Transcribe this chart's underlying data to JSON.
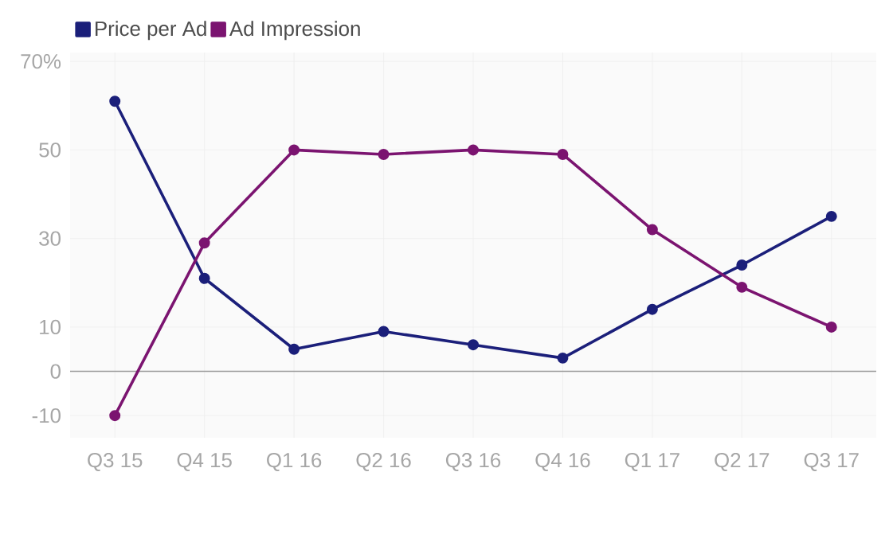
{
  "chart_data": {
    "type": "line",
    "categories": [
      "Q3 15",
      "Q4 15",
      "Q1 16",
      "Q2 16",
      "Q3 16",
      "Q4 16",
      "Q1 17",
      "Q2 17",
      "Q3 17"
    ],
    "series": [
      {
        "name": "Price per Ad",
        "color": "#1b1f7a",
        "values": [
          61,
          21,
          5,
          9,
          6,
          3,
          14,
          24,
          35
        ]
      },
      {
        "name": "Ad Impression",
        "color": "#7b1470",
        "values": [
          -10,
          29,
          50,
          49,
          50,
          49,
          32,
          19,
          10
        ]
      }
    ],
    "ylim": [
      -15,
      72
    ],
    "yticks": [
      -10,
      0,
      10,
      30,
      50,
      {
        "value": 70,
        "label": "70%"
      }
    ],
    "grid": true,
    "legend": "top left",
    "marker": "circle",
    "line_style": "solid"
  }
}
